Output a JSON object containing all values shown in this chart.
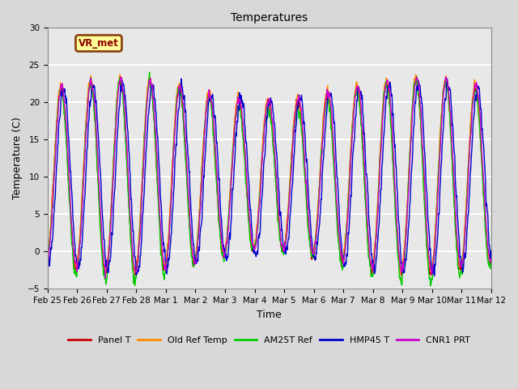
{
  "title": "Temperatures",
  "xlabel": "Time",
  "ylabel": "Temperature (C)",
  "ylim": [
    -5,
    30
  ],
  "fig_bg_color": "#d8d8d8",
  "plot_bg_color": "#e8e8e8",
  "grid_color": "white",
  "annotation_text": "VR_met",
  "annotation_bbox_fc": "#ffff99",
  "annotation_bbox_ec": "#8B4513",
  "annotation_color": "#8B0000",
  "legend_labels": [
    "Panel T",
    "Old Ref Temp",
    "AM25T Ref",
    "HMP45 T",
    "CNR1 PRT"
  ],
  "line_colors": [
    "#cc0000",
    "#ff8c00",
    "#00cc00",
    "#0000cc",
    "#cc00cc"
  ],
  "n_days": 15,
  "tick_labels": [
    "Feb 25",
    "Feb 26",
    "Feb 27",
    "Feb 28",
    "Mar 1",
    "Mar 2",
    "Mar 3",
    "Mar 4",
    "Mar 5",
    "Mar 6",
    "Mar 7",
    "Mar 8",
    "Mar 9",
    "Mar 10",
    "Mar 11",
    "Mar 12"
  ]
}
